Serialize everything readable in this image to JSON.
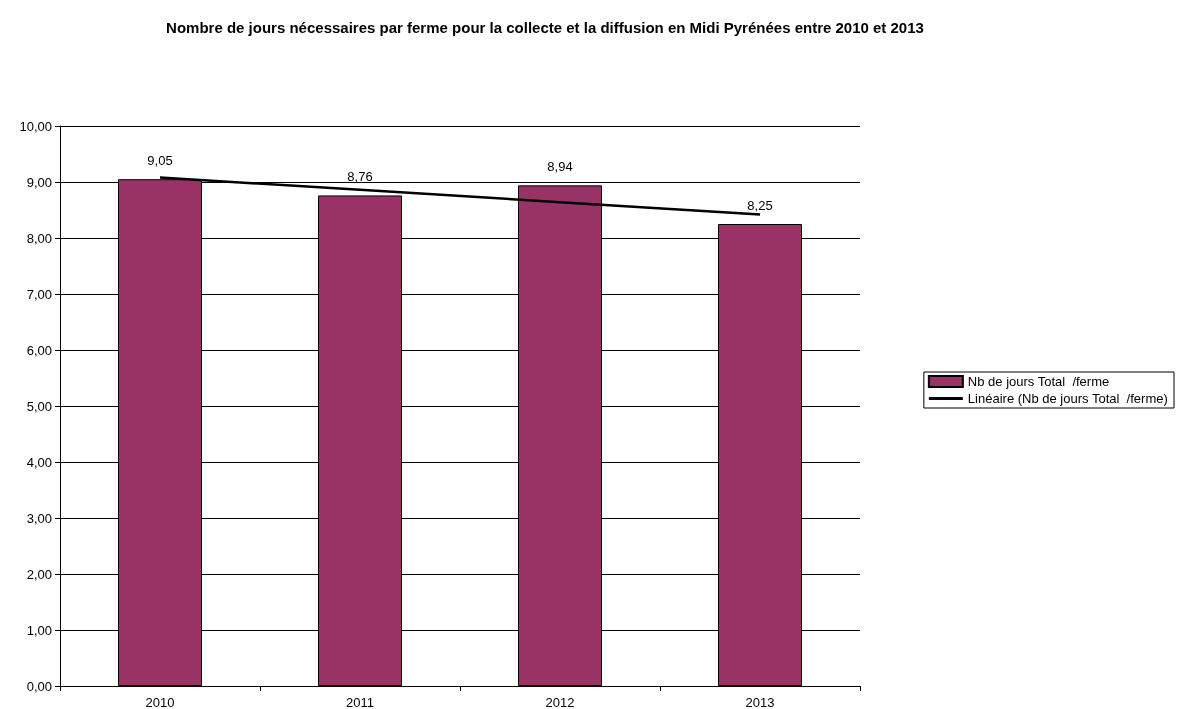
{
  "chart_data": {
    "type": "bar",
    "title": "Nombre de jours nécessaires par ferme pour la collecte et la diffusion en Midi Pyrénées entre 2010 et 2013",
    "categories": [
      "2010",
      "2011",
      "2012",
      "2013"
    ],
    "series": [
      {
        "name": "Nb de jours Total  /ferme",
        "color": "#993366",
        "values": [
          9.05,
          8.76,
          8.94,
          8.25
        ],
        "value_labels": [
          "9,05",
          "8,76",
          "8,94",
          "8,25"
        ]
      },
      {
        "name": "Linéaire (Nb de jours Total  /ferme)",
        "type": "line",
        "color": "#000000",
        "values": [
          9.08,
          8.86,
          8.64,
          8.42
        ]
      }
    ],
    "ylim": [
      0,
      10
    ],
    "yticks": [
      {
        "value": 0,
        "label": "0,00"
      },
      {
        "value": 1,
        "label": "1,00"
      },
      {
        "value": 2,
        "label": "2,00"
      },
      {
        "value": 3,
        "label": "3,00"
      },
      {
        "value": 4,
        "label": "4,00"
      },
      {
        "value": 5,
        "label": "5,00"
      },
      {
        "value": 6,
        "label": "6,00"
      },
      {
        "value": 7,
        "label": "7,00"
      },
      {
        "value": 8,
        "label": "8,00"
      },
      {
        "value": 9,
        "label": "9,00"
      },
      {
        "value": 10,
        "label": "10,00"
      }
    ],
    "grid": "y",
    "legend": "right",
    "marker": "none"
  }
}
